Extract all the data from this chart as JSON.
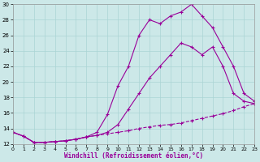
{
  "xlabel": "Windchill (Refroidissement éolien,°C)",
  "background_color": "#cce8e8",
  "grid_color": "#aad4d4",
  "line_color": "#990099",
  "xlim": [
    0,
    23
  ],
  "ylim": [
    12,
    30
  ],
  "xticks": [
    0,
    1,
    2,
    3,
    4,
    5,
    6,
    7,
    8,
    9,
    10,
    11,
    12,
    13,
    14,
    15,
    16,
    17,
    18,
    19,
    20,
    21,
    22,
    23
  ],
  "yticks": [
    12,
    14,
    16,
    18,
    20,
    22,
    24,
    26,
    28,
    30
  ],
  "series": [
    {
      "x": [
        0,
        1,
        2,
        3,
        4,
        5,
        6,
        7,
        8,
        9,
        10,
        11,
        12,
        13,
        14,
        15,
        16,
        17,
        18,
        19,
        20,
        21,
        22,
        23
      ],
      "y": [
        13.5,
        13.0,
        12.2,
        12.2,
        12.3,
        12.4,
        12.6,
        12.9,
        13.1,
        13.3,
        13.5,
        13.7,
        14.0,
        14.2,
        14.4,
        14.5,
        14.7,
        15.0,
        15.3,
        15.6,
        15.9,
        16.3,
        16.8,
        17.2
      ],
      "linestyle": "--",
      "marker": "+"
    },
    {
      "x": [
        0,
        1,
        2,
        3,
        4,
        5,
        6,
        7,
        8,
        9,
        10,
        11,
        12,
        13,
        14,
        15,
        16,
        17,
        18,
        19,
        20,
        21,
        22,
        23
      ],
      "y": [
        13.5,
        13.0,
        12.2,
        12.2,
        12.3,
        12.4,
        12.6,
        12.9,
        13.1,
        13.5,
        14.5,
        16.5,
        18.5,
        20.5,
        22.0,
        23.5,
        25.0,
        24.5,
        23.5,
        24.5,
        22.0,
        18.5,
        17.5,
        17.2
      ],
      "linestyle": "-",
      "marker": "+"
    },
    {
      "x": [
        0,
        1,
        2,
        3,
        4,
        5,
        6,
        7,
        8,
        9,
        10,
        11,
        12,
        13,
        14,
        15,
        16,
        17,
        18,
        19,
        20,
        21,
        22,
        23
      ],
      "y": [
        13.5,
        13.0,
        12.2,
        12.2,
        12.3,
        12.4,
        12.6,
        12.9,
        13.5,
        15.8,
        19.5,
        22.0,
        26.0,
        28.0,
        27.5,
        28.5,
        29.0,
        30.0,
        28.5,
        27.0,
        24.5,
        22.0,
        18.5,
        17.5
      ],
      "linestyle": "-",
      "marker": "+"
    }
  ]
}
